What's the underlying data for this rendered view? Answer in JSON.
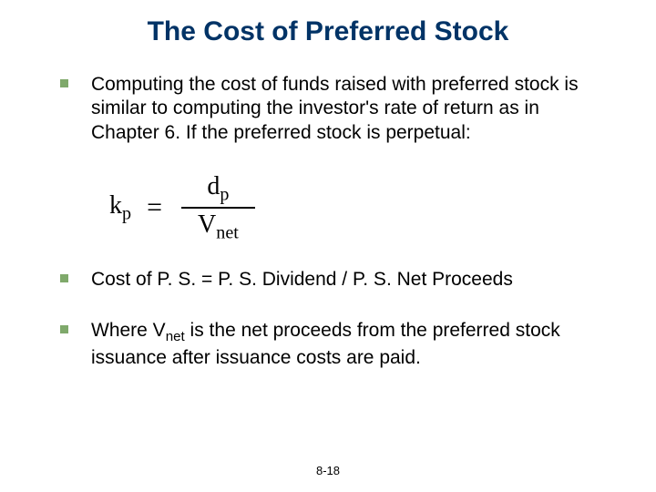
{
  "slide": {
    "title": "The Cost of Preferred Stock",
    "title_color": "#003366",
    "title_fontsize": 30,
    "bullet_marker_color": "#7fa96b",
    "body_color": "#000000",
    "body_fontsize": 21,
    "bullets": [
      "Computing the cost of funds raised with preferred stock is similar to computing the investor's rate of return as in Chapter 6.  If the preferred stock is perpetual:",
      "Cost of P. S. =  P. S. Dividend / P. S. Net Proceeds",
      "__WHERE_VNET__"
    ],
    "bullet3_prefix": "Where V",
    "bullet3_sub": "net",
    "bullet3_suffix": " is the net proceeds from the preferred stock issuance after issuance costs are paid.",
    "formula": {
      "color": "#000000",
      "fontsize": 28,
      "lhs_base": "k",
      "lhs_sub": "p",
      "num_base": "d",
      "num_sub": "p",
      "den_base": "V",
      "den_sub": "net",
      "line_color": "#000000"
    },
    "footer": {
      "text": "8-18",
      "color": "#000000",
      "fontsize": 13
    }
  }
}
